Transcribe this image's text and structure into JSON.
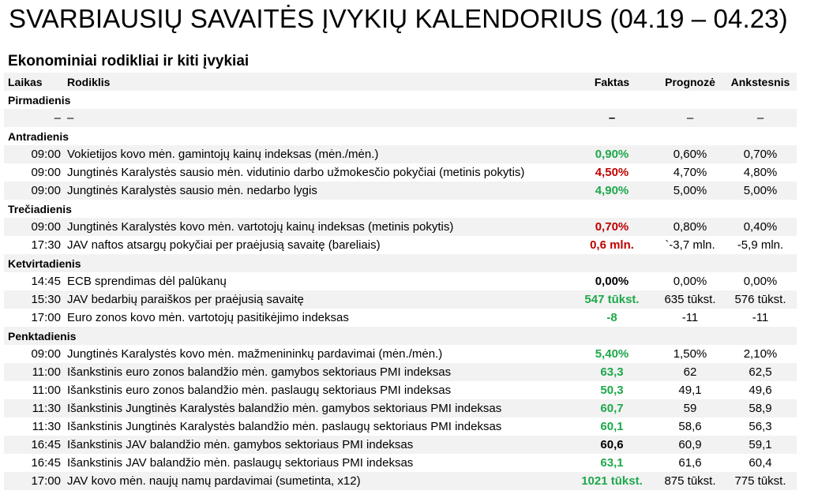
{
  "title": "SVARBIAUSIŲ SAVAITĖS ĮVYKIŲ KALENDORIUS (04.19 – 04.23)",
  "subtitle": "Ekonominiai rodikliai ir kiti įvykiai",
  "header": {
    "time": "Laikas",
    "indicator": "Rodiklis",
    "fact": "Faktas",
    "forecast": "Prognozė",
    "previous": "Ankstesnis"
  },
  "colors": {
    "positive": "#1ea84b",
    "negative": "#c00000",
    "shade": "#f2f2f2"
  },
  "days": [
    {
      "name": "Pirmadienis",
      "rows": [
        {
          "time": "–",
          "indicator": "–",
          "fact": "–",
          "fact_color": "black",
          "forecast": "–",
          "previous": "–"
        }
      ]
    },
    {
      "name": "Antradienis",
      "rows": [
        {
          "time": "09:00",
          "indicator": "Vokietijos kovo mėn. gamintojų kainų indeksas (mėn./mėn.)",
          "fact": "0,90%",
          "fact_color": "green",
          "forecast": "0,60%",
          "previous": "0,70%"
        },
        {
          "time": "09:00",
          "indicator": "Jungtinės Karalystės sausio mėn. vidutinio darbo užmokesčio pokyčiai (metinis pokytis)",
          "fact": "4,50%",
          "fact_color": "red",
          "forecast": "4,70%",
          "previous": "4,80%"
        },
        {
          "time": "09:00",
          "indicator": "Jungtinės Karalystės sausio mėn. nedarbo lygis",
          "fact": "4,90%",
          "fact_color": "green",
          "forecast": "5,00%",
          "previous": "5,00%"
        }
      ]
    },
    {
      "name": "Trečiadienis",
      "rows": [
        {
          "time": "09:00",
          "indicator": "Jungtinės Karalystės kovo mėn. vartotojų kainų indeksas (metinis pokytis)",
          "fact": "0,70%",
          "fact_color": "red",
          "forecast": "0,80%",
          "previous": "0,40%"
        },
        {
          "time": "17:30",
          "indicator": "JAV naftos atsargų pokyčiai per praėjusią savaitę (bareliais)",
          "fact": "0,6 mln.",
          "fact_color": "red",
          "forecast": "`-3,7 mln.",
          "previous": "-5,9 mln."
        }
      ]
    },
    {
      "name": "Ketvirtadienis",
      "rows": [
        {
          "time": "14:45",
          "indicator": "ECB sprendimas dėl palūkanų",
          "fact": "0,00%",
          "fact_color": "black",
          "forecast": "0,00%",
          "previous": "0,00%"
        },
        {
          "time": "15:30",
          "indicator": "JAV bedarbių paraiškos per praėjusią savaitę",
          "fact": "547 tūkst.",
          "fact_color": "green",
          "forecast": "635 tūkst.",
          "previous": "576 tūkst."
        },
        {
          "time": "17:00",
          "indicator": "Euro zonos kovo mėn. vartotojų pasitikėjimo indeksas",
          "fact": "-8",
          "fact_color": "green",
          "forecast": "-11",
          "previous": "-11"
        }
      ]
    },
    {
      "name": "Penktadienis",
      "rows": [
        {
          "time": "09:00",
          "indicator": "Jungtinės Karalystės kovo mėn. mažmenininkų pardavimai (mėn./mėn.)",
          "fact": "5,40%",
          "fact_color": "green",
          "forecast": "1,50%",
          "previous": "2,10%"
        },
        {
          "time": "11:00",
          "indicator": "Išankstinis euro zonos balandžio mėn. gamybos sektoriaus PMI indeksas",
          "fact": "63,3",
          "fact_color": "green",
          "forecast": "62",
          "previous": "62,5"
        },
        {
          "time": "11:00",
          "indicator": "Išankstinis euro zonos balandžio mėn. paslaugų sektoriaus PMI indeksas",
          "fact": "50,3",
          "fact_color": "green",
          "forecast": "49,1",
          "previous": "49,6"
        },
        {
          "time": "11:30",
          "indicator": "Išankstinis Jungtinės Karalystės balandžio mėn. gamybos sektoriaus PMI indeksas",
          "fact": "60,7",
          "fact_color": "green",
          "forecast": "59",
          "previous": "58,9"
        },
        {
          "time": "11:30",
          "indicator": "Išankstinis Jungtinės Karalystės balandžio mėn. paslaugų sektoriaus PMI indeksas",
          "fact": "60,1",
          "fact_color": "green",
          "forecast": "58,6",
          "previous": "56,3"
        },
        {
          "time": "16:45",
          "indicator": "Išankstinis JAV balandžio mėn. gamybos sektoriaus PMI indeksas",
          "fact": "60,6",
          "fact_color": "black",
          "forecast": "60,9",
          "previous": "59,1"
        },
        {
          "time": "16:45",
          "indicator": "Išankstinis JAV balandžio mėn. paslaugų sektoriaus PMI indeksas",
          "fact": "63,1",
          "fact_color": "green",
          "forecast": "61,6",
          "previous": "60,4"
        },
        {
          "time": "17:00",
          "indicator": "JAV kovo mėn. naujų namų pardavimai (sumetinta, x12)",
          "fact": "1021 tūkst.",
          "fact_color": "green",
          "forecast": "875 tūkst.",
          "previous": "775 tūkst."
        }
      ]
    }
  ]
}
